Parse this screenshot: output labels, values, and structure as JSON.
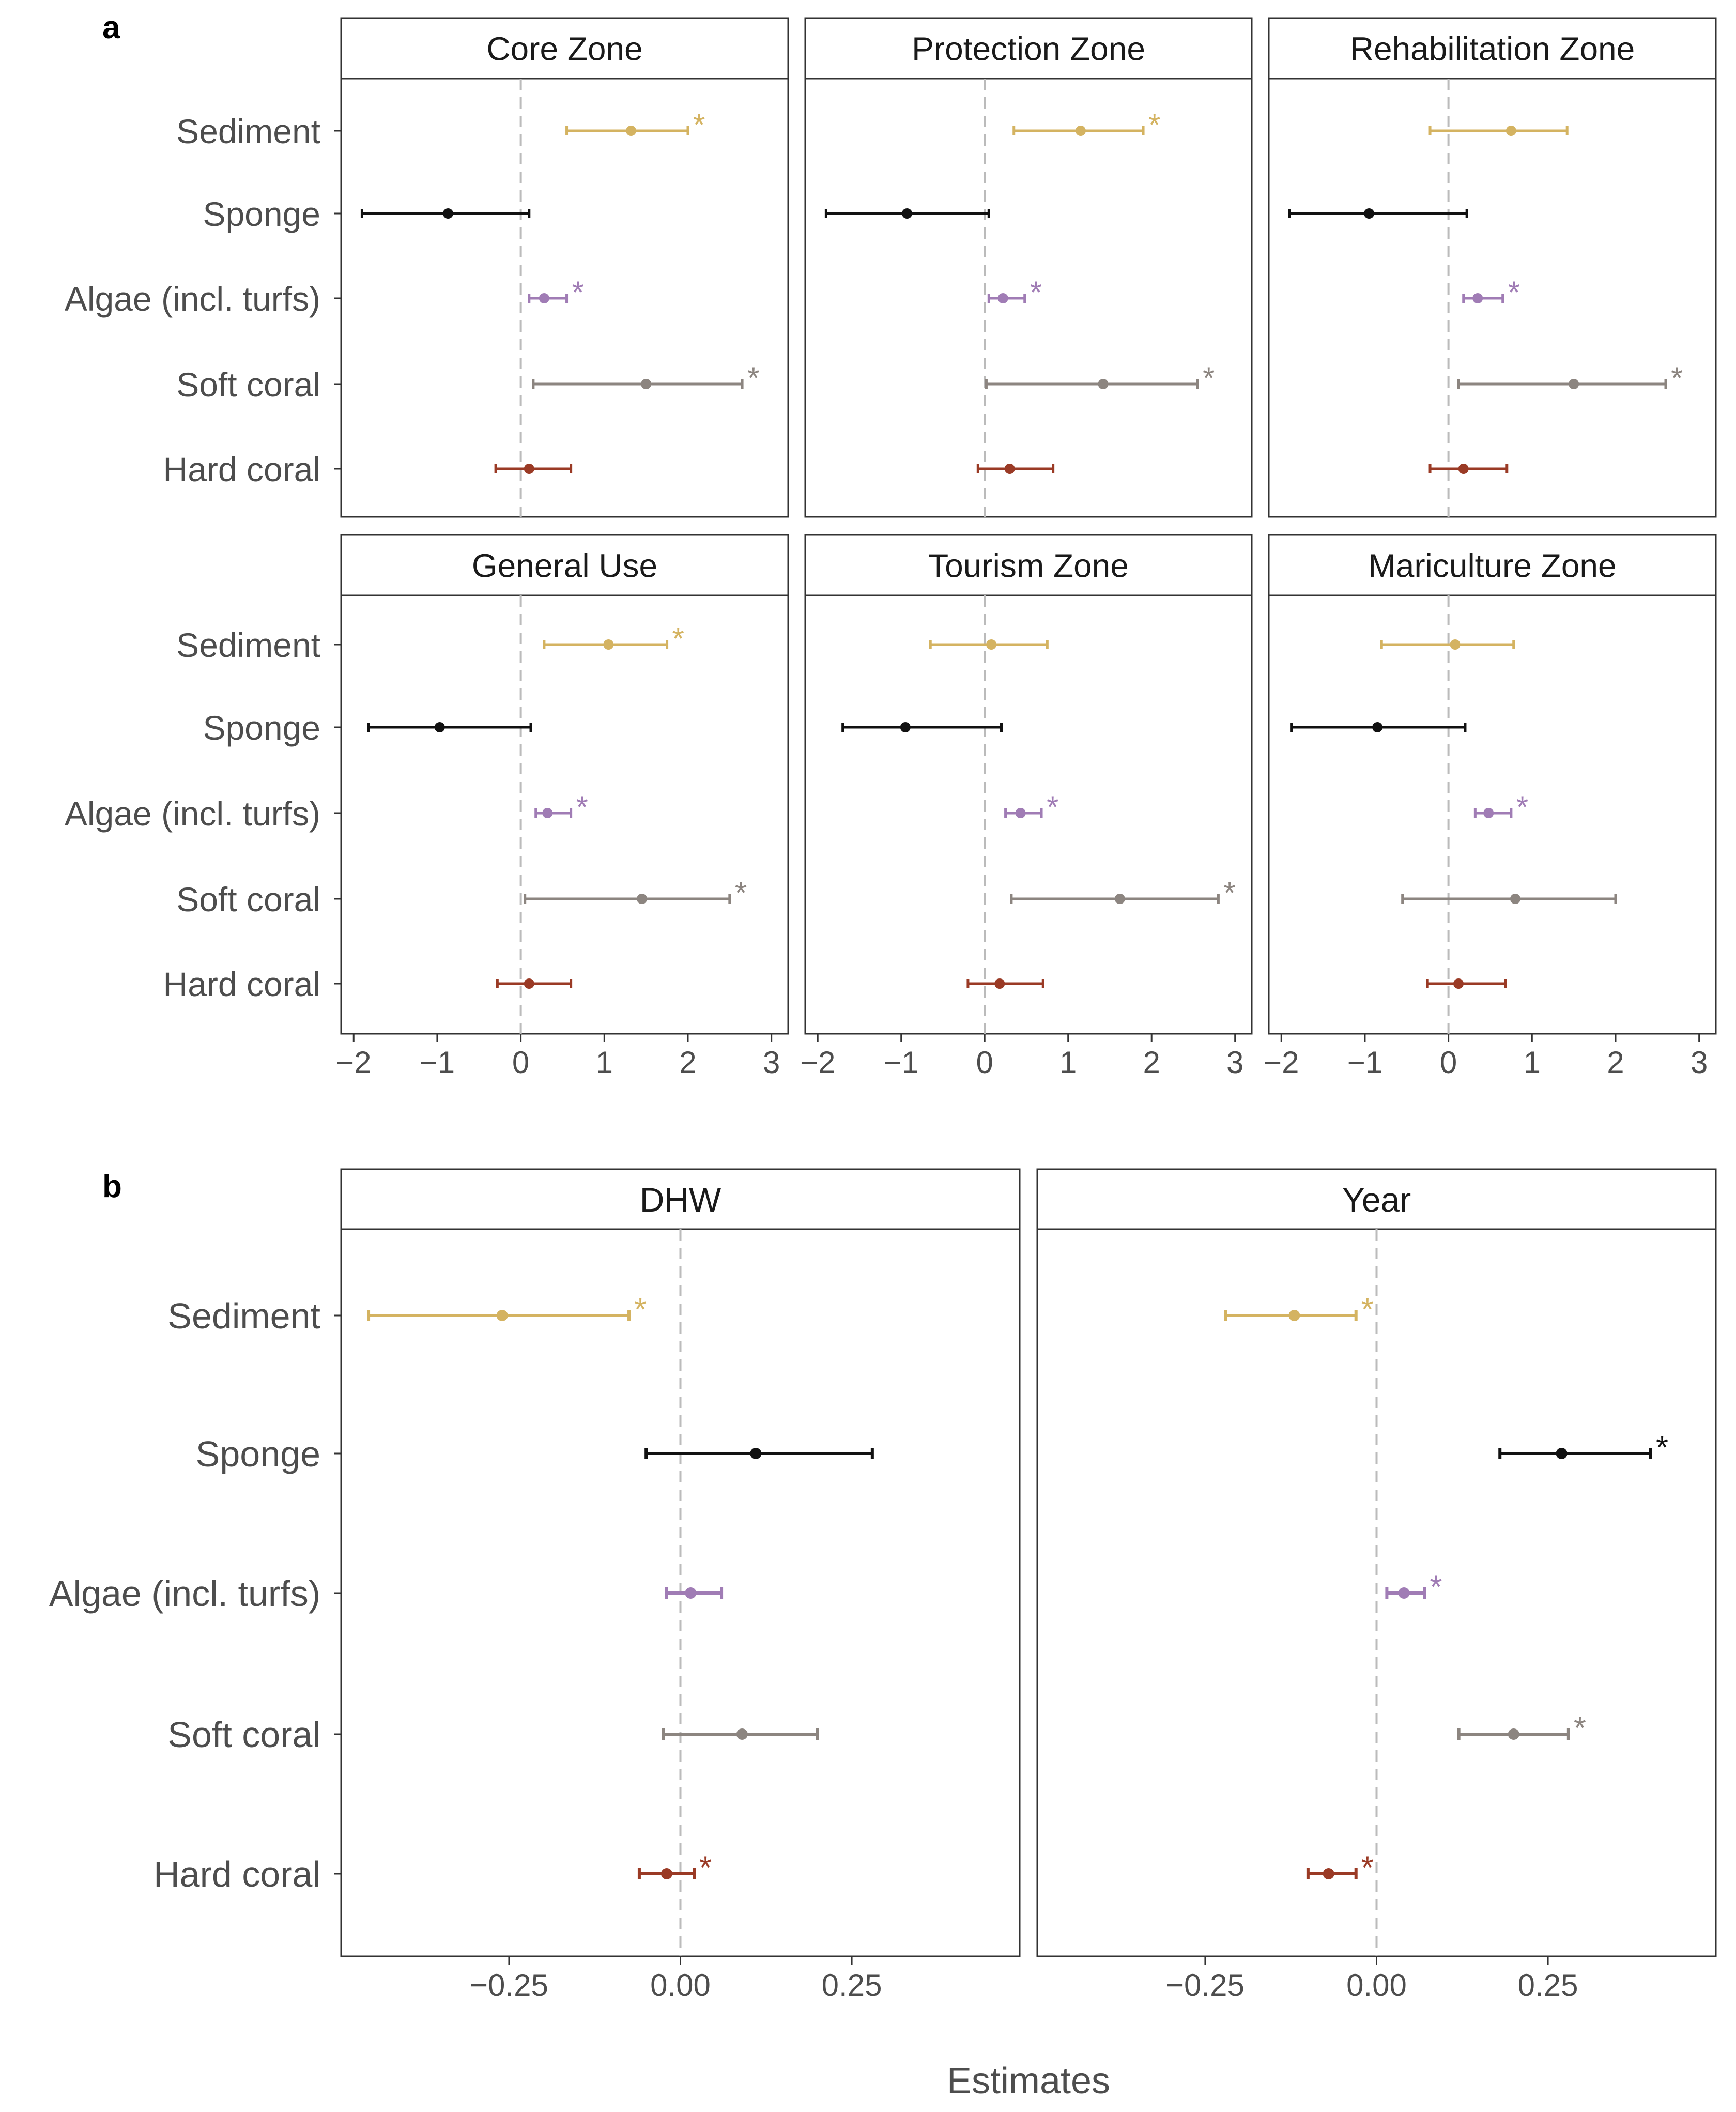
{
  "panel_labels": {
    "a": "a",
    "b": "b"
  },
  "xlabel": "Estimates",
  "colors": {
    "Sediment": "#d4b361",
    "Sponge": "#111111",
    "Algae (incl. turfs)": "#a07cb5",
    "Soft coral": "#8c8580",
    "Hard coral": "#9a3a25",
    "strip_fill": "#ffffff",
    "frame": "#333333",
    "zero_line": "#bbbbbb",
    "text": "#4d4d4d"
  },
  "chart_data": [
    {
      "type": "forest",
      "panel": "a",
      "categories": [
        "Sediment",
        "Sponge",
        "Algae (incl. turfs)",
        "Soft coral",
        "Hard coral"
      ],
      "xlim": [
        -2.15,
        3.2
      ],
      "xticks": [
        -2,
        -1,
        0,
        1,
        2,
        3
      ],
      "xtick_labels": [
        "−2",
        "−1",
        "0",
        "1",
        "2",
        "3"
      ],
      "facets": [
        {
          "title": "Core Zone",
          "series": [
            {
              "category": "Sediment",
              "estimate": 1.32,
              "lower": 0.55,
              "upper": 2.0,
              "sig": true
            },
            {
              "category": "Sponge",
              "estimate": -0.87,
              "lower": -1.9,
              "upper": 0.1,
              "sig": false
            },
            {
              "category": "Algae (incl. turfs)",
              "estimate": 0.28,
              "lower": 0.1,
              "upper": 0.55,
              "sig": true
            },
            {
              "category": "Soft coral",
              "estimate": 1.5,
              "lower": 0.15,
              "upper": 2.65,
              "sig": true
            },
            {
              "category": "Hard coral",
              "estimate": 0.1,
              "lower": -0.3,
              "upper": 0.6,
              "sig": false
            }
          ]
        },
        {
          "title": "Protection Zone",
          "series": [
            {
              "category": "Sediment",
              "estimate": 1.15,
              "lower": 0.35,
              "upper": 1.9,
              "sig": true
            },
            {
              "category": "Sponge",
              "estimate": -0.93,
              "lower": -1.9,
              "upper": 0.05,
              "sig": false
            },
            {
              "category": "Algae (incl. turfs)",
              "estimate": 0.22,
              "lower": 0.05,
              "upper": 0.48,
              "sig": true
            },
            {
              "category": "Soft coral",
              "estimate": 1.42,
              "lower": 0.02,
              "upper": 2.55,
              "sig": true
            },
            {
              "category": "Hard coral",
              "estimate": 0.3,
              "lower": -0.08,
              "upper": 0.82,
              "sig": false
            }
          ]
        },
        {
          "title": "Rehabilitation Zone",
          "series": [
            {
              "category": "Sediment",
              "estimate": 0.75,
              "lower": -0.22,
              "upper": 1.42,
              "sig": false
            },
            {
              "category": "Sponge",
              "estimate": -0.95,
              "lower": -1.9,
              "upper": 0.22,
              "sig": false
            },
            {
              "category": "Algae (incl. turfs)",
              "estimate": 0.35,
              "lower": 0.18,
              "upper": 0.65,
              "sig": true
            },
            {
              "category": "Soft coral",
              "estimate": 1.5,
              "lower": 0.12,
              "upper": 2.6,
              "sig": true
            },
            {
              "category": "Hard coral",
              "estimate": 0.18,
              "lower": -0.22,
              "upper": 0.7,
              "sig": false
            }
          ]
        },
        {
          "title": "General Use",
          "series": [
            {
              "category": "Sediment",
              "estimate": 1.05,
              "lower": 0.28,
              "upper": 1.75,
              "sig": true
            },
            {
              "category": "Sponge",
              "estimate": -0.97,
              "lower": -1.82,
              "upper": 0.12,
              "sig": false
            },
            {
              "category": "Algae (incl. turfs)",
              "estimate": 0.32,
              "lower": 0.18,
              "upper": 0.6,
              "sig": true
            },
            {
              "category": "Soft coral",
              "estimate": 1.45,
              "lower": 0.05,
              "upper": 2.5,
              "sig": true
            },
            {
              "category": "Hard coral",
              "estimate": 0.1,
              "lower": -0.28,
              "upper": 0.6,
              "sig": false
            }
          ]
        },
        {
          "title": "Tourism Zone",
          "series": [
            {
              "category": "Sediment",
              "estimate": 0.08,
              "lower": -0.65,
              "upper": 0.75,
              "sig": false
            },
            {
              "category": "Sponge",
              "estimate": -0.95,
              "lower": -1.7,
              "upper": 0.2,
              "sig": false
            },
            {
              "category": "Algae (incl. turfs)",
              "estimate": 0.43,
              "lower": 0.25,
              "upper": 0.68,
              "sig": true
            },
            {
              "category": "Soft coral",
              "estimate": 1.62,
              "lower": 0.32,
              "upper": 2.8,
              "sig": true
            },
            {
              "category": "Hard coral",
              "estimate": 0.18,
              "lower": -0.2,
              "upper": 0.7,
              "sig": false
            }
          ]
        },
        {
          "title": "Mariculture Zone",
          "series": [
            {
              "category": "Sediment",
              "estimate": 0.08,
              "lower": -0.8,
              "upper": 0.78,
              "sig": false
            },
            {
              "category": "Sponge",
              "estimate": -0.85,
              "lower": -1.88,
              "upper": 0.2,
              "sig": false
            },
            {
              "category": "Algae (incl. turfs)",
              "estimate": 0.48,
              "lower": 0.32,
              "upper": 0.75,
              "sig": true
            },
            {
              "category": "Soft coral",
              "estimate": 0.8,
              "lower": -0.55,
              "upper": 2.0,
              "sig": false
            },
            {
              "category": "Hard coral",
              "estimate": 0.12,
              "lower": -0.25,
              "upper": 0.68,
              "sig": false
            }
          ]
        }
      ]
    },
    {
      "type": "forest",
      "panel": "b",
      "categories": [
        "Sediment",
        "Sponge",
        "Algae (incl. turfs)",
        "Soft coral",
        "Hard coral"
      ],
      "xlim": [
        -0.495,
        0.495
      ],
      "xticks": [
        -0.25,
        0,
        0.25
      ],
      "xtick_labels": [
        "−0.25",
        "0.00",
        "0.25"
      ],
      "facets": [
        {
          "title": "DHW",
          "series": [
            {
              "category": "Sediment",
              "estimate": -0.26,
              "lower": -0.455,
              "upper": -0.075,
              "sig": true
            },
            {
              "category": "Sponge",
              "estimate": 0.11,
              "lower": -0.05,
              "upper": 0.28,
              "sig": false
            },
            {
              "category": "Algae (incl. turfs)",
              "estimate": 0.015,
              "lower": -0.02,
              "upper": 0.06,
              "sig": false
            },
            {
              "category": "Soft coral",
              "estimate": 0.09,
              "lower": -0.025,
              "upper": 0.2,
              "sig": false
            },
            {
              "category": "Hard coral",
              "estimate": -0.02,
              "lower": -0.06,
              "upper": 0.02,
              "sig": true
            }
          ]
        },
        {
          "title": "Year",
          "series": [
            {
              "category": "Sediment",
              "estimate": -0.12,
              "lower": -0.22,
              "upper": -0.03,
              "sig": true
            },
            {
              "category": "Sponge",
              "estimate": 0.27,
              "lower": 0.18,
              "upper": 0.4,
              "sig": true
            },
            {
              "category": "Algae (incl. turfs)",
              "estimate": 0.04,
              "lower": 0.015,
              "upper": 0.07,
              "sig": true
            },
            {
              "category": "Soft coral",
              "estimate": 0.2,
              "lower": 0.12,
              "upper": 0.28,
              "sig": true
            },
            {
              "category": "Hard coral",
              "estimate": -0.07,
              "lower": -0.1,
              "upper": -0.03,
              "sig": true
            }
          ]
        }
      ]
    }
  ]
}
